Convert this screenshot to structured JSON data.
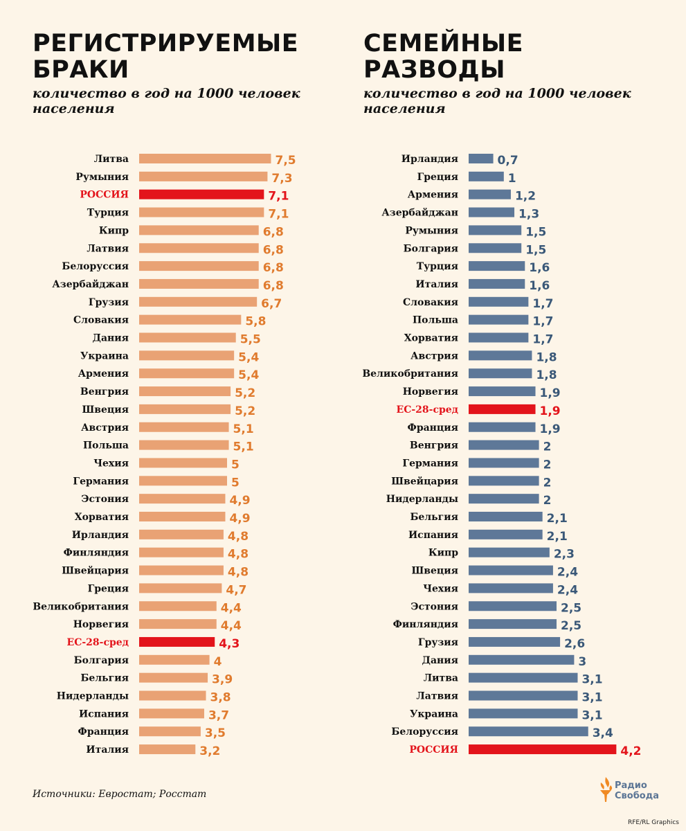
{
  "left_chart": {
    "title": "РЕГИСТРИРУЕМЫЕ БРАКИ",
    "subtitle": "количество в год на 1000 человек населения"
  },
  "right_chart": {
    "title": "СЕМЕЙНЫЕ РАЗВОДЫ",
    "subtitle": "количество в год на 1000 человек населения"
  },
  "footer": {
    "source": "Источники: Евростат; Росстат",
    "logo_line1": "Радио",
    "logo_line2": "Свобода",
    "credit": "RFE/RL Graphics"
  },
  "colors": {
    "marriage_bar": "#e9a274",
    "marriage_value": "#e07b2e",
    "divorce_bar": "#5e7898",
    "divorce_value": "#3a5878",
    "highlight": "#e3141b"
  },
  "chart_data": [
    {
      "type": "bar",
      "orientation": "horizontal",
      "title": "РЕГИСТРИРУЕМЫЕ БРАКИ",
      "subtitle": "количество в год на 1000 человек населения",
      "categories": [
        "Литва",
        "Румыния",
        "РОССИЯ",
        "Турция",
        "Кипр",
        "Латвия",
        "Белоруссия",
        "Азербайджан",
        "Грузия",
        "Словакия",
        "Дания",
        "Украина",
        "Армения",
        "Венгрия",
        "Швеция",
        "Австрия",
        "Польша",
        "Чехия",
        "Германия",
        "Эстония",
        "Хорватия",
        "Ирландия",
        "Финляндия",
        "Швейцария",
        "Греция",
        "Великобритания",
        "Норвегия",
        "ЕС-28-сред",
        "Болгария",
        "Бельгия",
        "Нидерланды",
        "Испания",
        "Франция",
        "Италия"
      ],
      "values": [
        7.5,
        7.3,
        7.1,
        7.1,
        6.8,
        6.8,
        6.8,
        6.8,
        6.7,
        5.8,
        5.5,
        5.4,
        5.4,
        5.2,
        5.2,
        5.1,
        5.1,
        5,
        5,
        4.9,
        4.9,
        4.8,
        4.8,
        4.8,
        4.7,
        4.4,
        4.4,
        4.3,
        4,
        3.9,
        3.8,
        3.7,
        3.5,
        3.2
      ],
      "value_labels": [
        "7,5",
        "7,3",
        "7,1",
        "7,1",
        "6,8",
        "6,8",
        "6,8",
        "6,8",
        "6,7",
        "5,8",
        "5,5",
        "5,4",
        "5,4",
        "5,2",
        "5,2",
        "5,1",
        "5,1",
        "5",
        "5",
        "4,9",
        "4,9",
        "4,8",
        "4,8",
        "4,8",
        "4,7",
        "4,4",
        "4,4",
        "4,3",
        "4",
        "3,9",
        "3,8",
        "3,7",
        "3,5",
        "3,2"
      ],
      "highlighted": [
        "РОССИЯ",
        "ЕС-28-сред"
      ]
    },
    {
      "type": "bar",
      "orientation": "horizontal",
      "title": "СЕМЕЙНЫЕ РАЗВОДЫ",
      "subtitle": "количество в год на 1000 человек населения",
      "categories": [
        "Ирландия",
        "Греция",
        "Армения",
        "Азербайджан",
        "Румыния",
        "Болгария",
        "Турция",
        "Италия",
        "Словакия",
        "Польша",
        "Хорватия",
        "Австрия",
        "Великобритания",
        "Норвегия",
        "ЕС-28-сред",
        "Франция",
        "Венгрия",
        "Германия",
        "Швейцария",
        "Нидерланды",
        "Бельгия",
        "Испания",
        "Кипр",
        "Швеция",
        "Чехия",
        "Эстония",
        "Финляндия",
        "Грузия",
        "Дания",
        "Литва",
        "Латвия",
        "Украина",
        "Белоруссия",
        "РОССИЯ"
      ],
      "values": [
        0.7,
        1,
        1.2,
        1.3,
        1.5,
        1.5,
        1.6,
        1.6,
        1.7,
        1.7,
        1.7,
        1.8,
        1.8,
        1.9,
        1.9,
        1.9,
        2,
        2,
        2,
        2,
        2.1,
        2.1,
        2.3,
        2.4,
        2.4,
        2.5,
        2.5,
        2.6,
        3,
        3.1,
        3.1,
        3.1,
        3.4,
        4.2
      ],
      "value_labels": [
        "0,7",
        "1",
        "1,2",
        "1,3",
        "1,5",
        "1,5",
        "1,6",
        "1,6",
        "1,7",
        "1,7",
        "1,7",
        "1,8",
        "1,8",
        "1,9",
        "1,9",
        "1,9",
        "2",
        "2",
        "2",
        "2",
        "2,1",
        "2,1",
        "2,3",
        "2,4",
        "2,4",
        "2,5",
        "2,5",
        "2,6",
        "3",
        "3,1",
        "3,1",
        "3,1",
        "3,4",
        "4,2"
      ],
      "highlighted": [
        "РОССИЯ",
        "ЕС-28-сред"
      ]
    }
  ]
}
